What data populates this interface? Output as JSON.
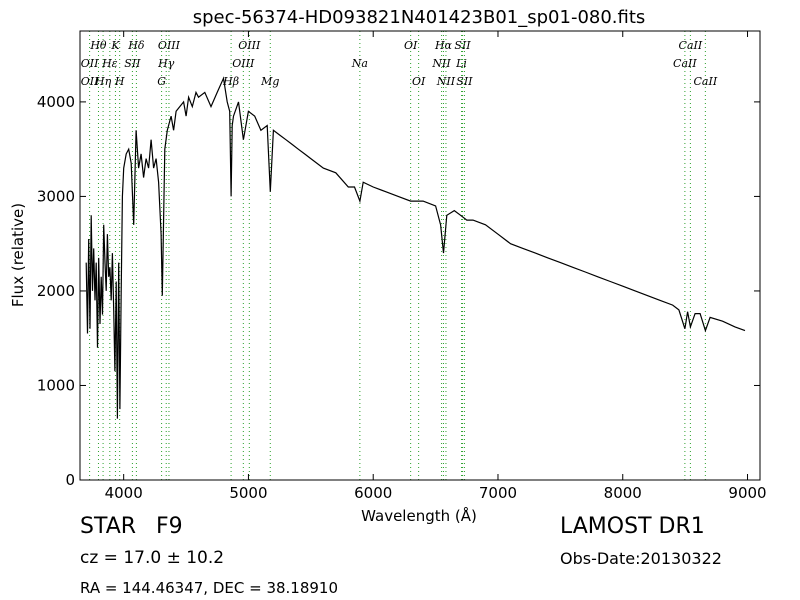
{
  "chart_data": {
    "type": "line",
    "title": "spec-56374-HD093821N401423B01_sp01-080.fits",
    "xlabel": "Wavelength (Å)",
    "ylabel": "Flux (relative)",
    "xlim": [
      3650,
      9100
    ],
    "ylim": [
      0,
      4750
    ],
    "x_ticks": [
      4000,
      5000,
      6000,
      7000,
      8000,
      9000
    ],
    "y_ticks": [
      0,
      1000,
      2000,
      3000,
      4000
    ],
    "line_color": "#000000",
    "marker_color": "#2ca02c",
    "series": [
      {
        "x": [
          3700,
          3710,
          3720,
          3730,
          3740,
          3750,
          3760,
          3770,
          3780,
          3790,
          3800,
          3810,
          3820,
          3830,
          3840,
          3850,
          3860,
          3870,
          3880,
          3890,
          3900,
          3910,
          3920,
          3930,
          3940,
          3950,
          3960,
          3970,
          3980,
          3990,
          4000,
          4020,
          4040,
          4060,
          4080,
          4100,
          4120,
          4140,
          4160,
          4180,
          4200,
          4220,
          4240,
          4260,
          4280,
          4300,
          4310,
          4330,
          4350,
          4380,
          4400,
          4420,
          4450,
          4480,
          4500,
          4520,
          4550,
          4580,
          4600,
          4650,
          4700,
          4750,
          4800,
          4830,
          4850,
          4861,
          4870,
          4880,
          4920,
          4960,
          5000,
          5050,
          5100,
          5150,
          5175,
          5200,
          5250,
          5300,
          5350,
          5400,
          5450,
          5500,
          5600,
          5700,
          5800,
          5850,
          5893,
          5920,
          6000,
          6100,
          6200,
          6300,
          6400,
          6500,
          6540,
          6563,
          6590,
          6650,
          6700,
          6750,
          6800,
          6900,
          7000,
          7100,
          7200,
          7300,
          7400,
          7500,
          7600,
          7700,
          7800,
          7900,
          8000,
          8100,
          8200,
          8300,
          8400,
          8450,
          8498,
          8520,
          8542,
          8580,
          8620,
          8662,
          8700,
          8800,
          8900,
          8980
        ],
        "y": [
          2300,
          1550,
          2550,
          1600,
          2800,
          2000,
          2450,
          1900,
          2300,
          1400,
          2350,
          1650,
          2150,
          1750,
          2700,
          2300,
          2000,
          2600,
          2150,
          2250,
          1900,
          2400,
          1800,
          1150,
          2100,
          650,
          2300,
          750,
          2000,
          3000,
          3300,
          3450,
          3500,
          3350,
          2700,
          3700,
          3300,
          3450,
          3200,
          3400,
          3300,
          3600,
          3300,
          3400,
          3150,
          2600,
          1950,
          3500,
          3700,
          3850,
          3700,
          3900,
          3950,
          4000,
          3850,
          4050,
          3950,
          4100,
          4050,
          4100,
          3950,
          4100,
          4250,
          4000,
          3900,
          3000,
          3750,
          3850,
          4000,
          3600,
          3900,
          3850,
          3700,
          3750,
          3050,
          3700,
          3650,
          3600,
          3550,
          3500,
          3450,
          3400,
          3300,
          3250,
          3100,
          3100,
          2950,
          3150,
          3100,
          3050,
          3000,
          2950,
          2950,
          2900,
          2700,
          2400,
          2800,
          2850,
          2800,
          2750,
          2750,
          2700,
          2600,
          2500,
          2450,
          2400,
          2350,
          2300,
          2250,
          2200,
          2150,
          2100,
          2050,
          2000,
          1950,
          1900,
          1850,
          1800,
          1600,
          1780,
          1620,
          1760,
          1760,
          1580,
          1720,
          1680,
          1620,
          1580
        ]
      }
    ],
    "spectral_lines": [
      {
        "label": "Hθ",
        "wl": 3798,
        "row": 0
      },
      {
        "label": "K",
        "wl": 3934,
        "row": 0
      },
      {
        "label": "Hδ",
        "wl": 4102,
        "row": 0
      },
      {
        "label": "OIII",
        "wl": 4363,
        "row": 0
      },
      {
        "label": "OIII",
        "wl": 5007,
        "row": 0
      },
      {
        "label": "OI",
        "wl": 6300,
        "row": 0
      },
      {
        "label": "Hα",
        "wl": 6563,
        "row": 0
      },
      {
        "label": "SII",
        "wl": 6716,
        "row": 0
      },
      {
        "label": "CaII",
        "wl": 8542,
        "row": 0
      },
      {
        "label": "OII",
        "wl": 3727,
        "row": 1
      },
      {
        "label": "Hε",
        "wl": 3889,
        "row": 1
      },
      {
        "label": "SII",
        "wl": 4070,
        "row": 1
      },
      {
        "label": "Hγ",
        "wl": 4341,
        "row": 1
      },
      {
        "label": "OIII",
        "wl": 4959,
        "row": 1
      },
      {
        "label": "Na",
        "wl": 5893,
        "row": 1
      },
      {
        "label": "NII",
        "wl": 6548,
        "row": 1
      },
      {
        "label": "Li",
        "wl": 6708,
        "row": 1
      },
      {
        "label": "CaII",
        "wl": 8498,
        "row": 1
      },
      {
        "label": "OII",
        "wl": 3727,
        "row": 2
      },
      {
        "label": "Hη",
        "wl": 3835,
        "row": 2
      },
      {
        "label": "H",
        "wl": 3968,
        "row": 2
      },
      {
        "label": "G",
        "wl": 4304,
        "row": 2
      },
      {
        "label": "Hβ",
        "wl": 4861,
        "row": 2
      },
      {
        "label": "Mg",
        "wl": 5175,
        "row": 2
      },
      {
        "label": "OI",
        "wl": 6364,
        "row": 2
      },
      {
        "label": "NII",
        "wl": 6583,
        "row": 2
      },
      {
        "label": "SII",
        "wl": 6731,
        "row": 2
      },
      {
        "label": "CaII",
        "wl": 8662,
        "row": 2
      }
    ]
  },
  "info": {
    "object_class": "STAR",
    "subclass": "F9",
    "redshift": "cz = 17.0  ± 10.2",
    "coords": "RA = 144.46347, DEC = 38.18910",
    "survey": "LAMOST DR1",
    "obs_date": "Obs-Date:20130322"
  }
}
